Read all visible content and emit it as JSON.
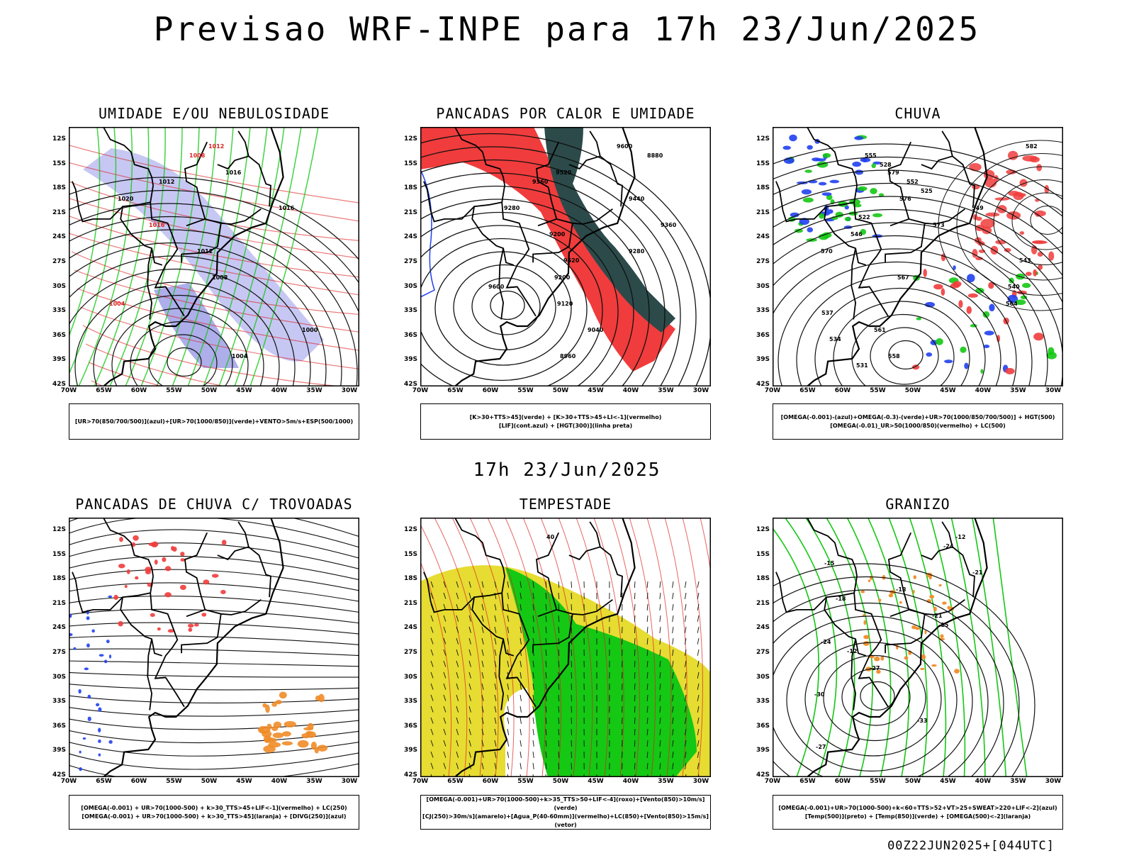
{
  "header": {
    "title": "Previsao WRF-INPE  para 17h 23/Jun/2025",
    "mid_date": "17h 23/Jun/2025"
  },
  "axes": {
    "lat_labels": [
      "12S",
      "15S",
      "18S",
      "21S",
      "24S",
      "27S",
      "30S",
      "33S",
      "36S",
      "39S",
      "42S"
    ],
    "lon_labels": [
      "70W",
      "65W",
      "60W",
      "55W",
      "50W",
      "45W",
      "40W",
      "35W",
      "30W"
    ]
  },
  "panels": [
    {
      "id": "umidade",
      "title": "UMIDADE E/OU NEBULOSIDADE",
      "legend": [
        "[UR>70(850/700/500)](azul)+[UR>70(1000/850)](verde)+VENTO>5m/s+ESP(500/1000)"
      ],
      "contour_labels": [
        "1012",
        "1016",
        "1020",
        "1016",
        "1012",
        "1008",
        "1004",
        "1000",
        "1004",
        "1008",
        "1012",
        "1016"
      ]
    },
    {
      "id": "pancadas-calor",
      "title": "PANCADAS POR CALOR E UMIDADE",
      "legend": [
        "[K>30+TTS>45](verde) + [K>30+TTS>45+LI<-1](vermelho)",
        "[LIF](cont.azul) + [HGT(300)](linha preta)"
      ],
      "contour_labels": [
        "9600",
        "9520",
        "9440",
        "9360",
        "9280",
        "9200",
        "9120",
        "9040",
        "8960",
        "8880",
        "9360",
        "9280",
        "9200",
        "9520",
        "9600"
      ]
    },
    {
      "id": "chuva",
      "title": "CHUVA",
      "legend": [
        "[OMEGA(-0.001)-(azul)+OMEGA(-0.3)-(verde)+UR>70(1000/850/700/500)] + HGT(500)",
        "[OMEGA(-0.01)_UR>50(1000/850)(vermelho) + LC(500)"
      ],
      "contour_labels": [
        "582",
        "579",
        "576",
        "573",
        "570",
        "567",
        "564",
        "561",
        "558",
        "555",
        "552",
        "549",
        "546",
        "543",
        "540",
        "537",
        "534",
        "531",
        "528",
        "525",
        "522"
      ]
    },
    {
      "id": "pancadas-trovoadas",
      "title": "PANCADAS DE CHUVA C/ TROVOADAS",
      "legend": [
        "[OMEGA(-0.001) + UR>70(1000-500) + k>30_TTS>45+LIF<-1](vermelho) + LC(250)",
        "[OMEGA(-0.001) + UR>70(1000-500) + k>30_TTS>45](laranja) + [DIVG(250)](azul)"
      ],
      "contour_labels": []
    },
    {
      "id": "tempestade",
      "title": "TEMPESTADE",
      "legend": [
        "[OMEGA(-0.001)+UR>70(1000-500)+k>35_TTS>50+LIF<-4](roxo)+[Vento(850)>10m/s](verde)",
        "[CJ(250)>30m/s](amarelo)+[Agua_P(40-60mm)](vermelho)+LC(850)+[Vento(850)>15m/s](vetor)"
      ],
      "contour_labels": [
        "40"
      ]
    },
    {
      "id": "granizo",
      "title": "GRANIZO",
      "legend": [
        "[OMEGA(-0.001)+UR>70(1000-500)+k<60+TTS>52+VT>25+SWEAT>220+LIF<-2](azul)",
        "[Temp(500)](preto) + [Temp(850)](verde) + [OMEGA(500)<-2](laranja)"
      ],
      "contour_labels": [
        "-12",
        "-15",
        "-18",
        "-21",
        "-24",
        "-27",
        "-30",
        "-33",
        "-27",
        "-24",
        "-21",
        "-18",
        "-15",
        "-12"
      ]
    }
  ],
  "footer": "00Z22JUN2025+[044UTC]",
  "colors": {
    "red": "#f03c3c",
    "green": "#14c814",
    "blue": "#2040f0",
    "lavender": "#b4b4f0",
    "yellow": "#e6dc32",
    "dark_teal": "#2c4a4a",
    "orange": "#f08c28"
  }
}
